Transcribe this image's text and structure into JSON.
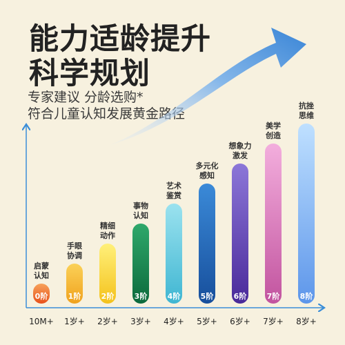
{
  "headline": {
    "line1": "能力适龄提升",
    "line2": "科学规划"
  },
  "subheading": {
    "line1": "专家建议 分龄选购*",
    "line2": "符合儿童认知发展黄金路径"
  },
  "chart_data": {
    "type": "bar",
    "categories": [
      "10M+",
      "1岁+",
      "2岁+",
      "3岁+",
      "4岁+",
      "5岁+",
      "6岁+",
      "7岁+",
      "8岁+"
    ],
    "values": [
      1,
      2,
      3,
      4,
      5,
      6,
      7,
      8,
      9
    ],
    "bar_labels": [
      "0阶",
      "1阶",
      "2阶",
      "3阶",
      "4阶",
      "5阶",
      "6阶",
      "7阶",
      "8阶"
    ],
    "annotations": [
      [
        "启蒙",
        "认知"
      ],
      [
        "手眼",
        "协调"
      ],
      [
        "精细",
        "动作"
      ],
      [
        "事物",
        "认知"
      ],
      [
        "艺术",
        "鉴赏"
      ],
      [
        "多元化",
        "感知"
      ],
      [
        "想象力",
        "激发"
      ],
      [
        "美学",
        "创造"
      ],
      [
        "抗挫",
        "思维"
      ]
    ],
    "colors": [
      [
        "#f7a25a",
        "#e8501a"
      ],
      [
        "#fbd157",
        "#f0a21e"
      ],
      [
        "#fff07a",
        "#f4c21c"
      ],
      [
        "#2fa86b",
        "#0c6a3c"
      ],
      [
        "#9be2ef",
        "#3fb6d2"
      ],
      [
        "#3b8ad8",
        "#174f9c"
      ],
      [
        "#8c77d8",
        "#4a2a9a"
      ],
      [
        "#f3aedd",
        "#c2549f"
      ],
      [
        "#bfe0ff",
        "#5d96ea"
      ]
    ],
    "xlabel": "",
    "ylabel": "",
    "grid": false
  }
}
